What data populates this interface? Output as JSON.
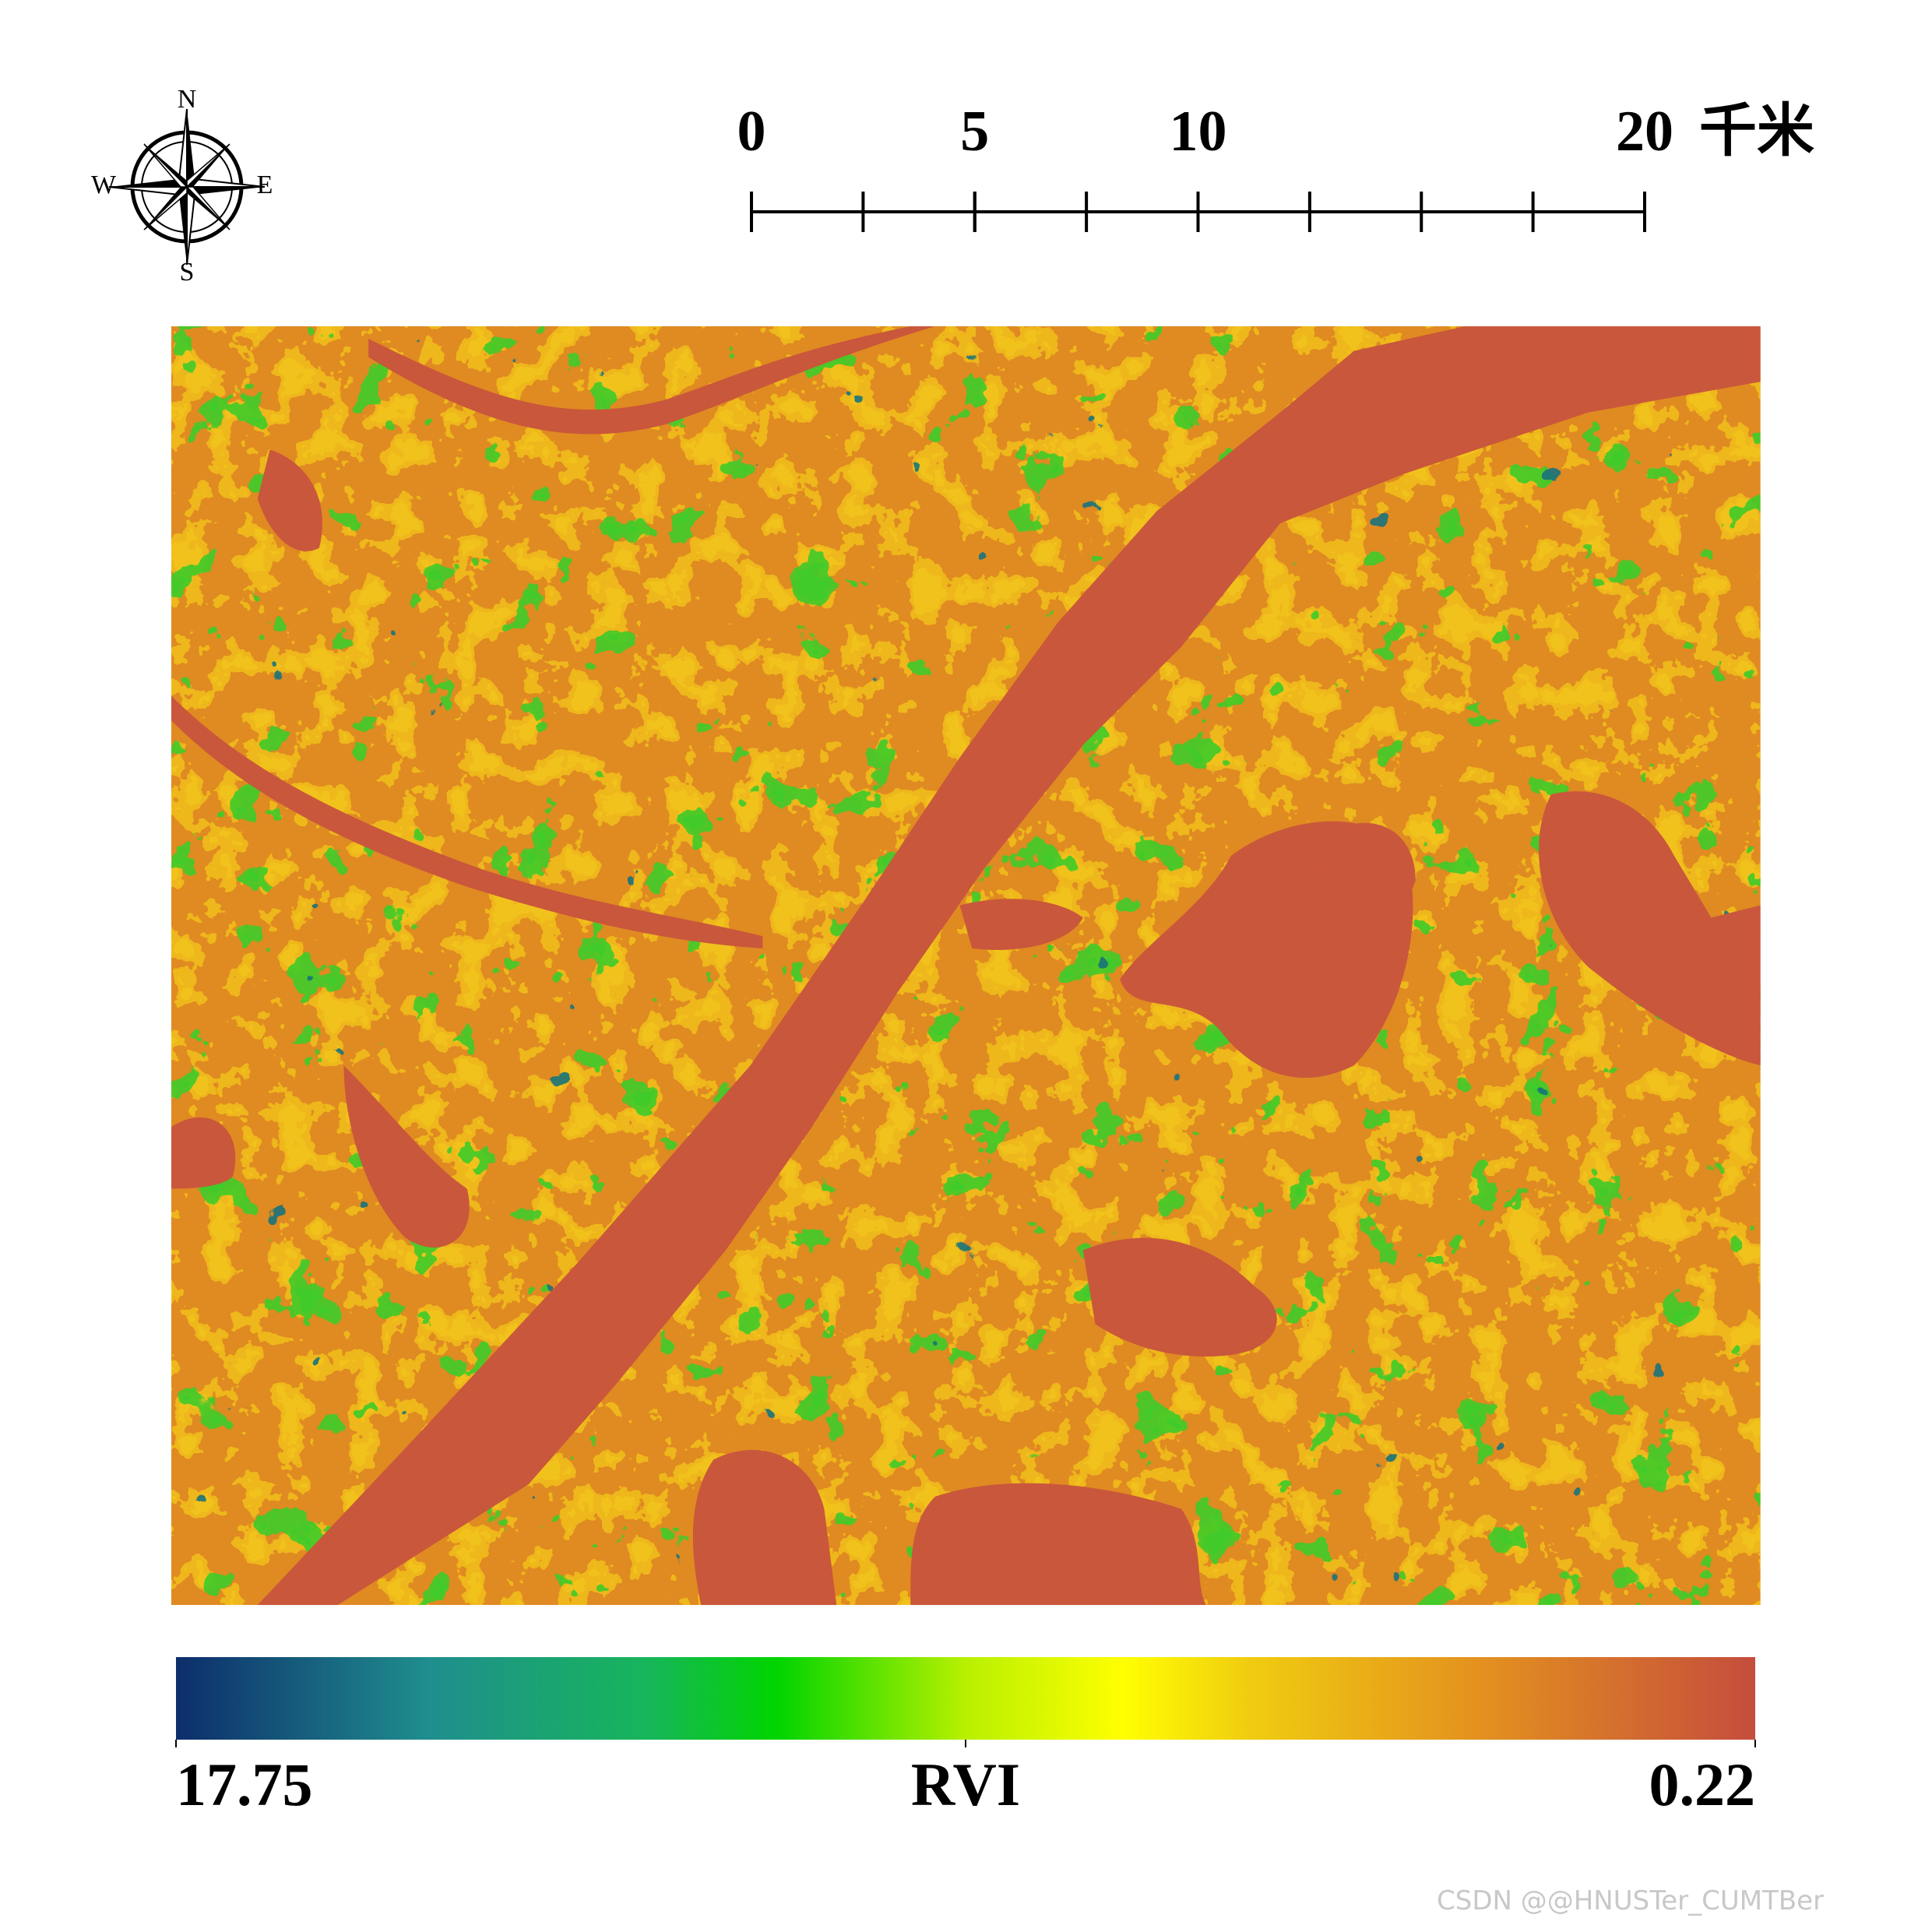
{
  "compass": {
    "north": "N",
    "south": "S",
    "west": "W",
    "east": "E"
  },
  "scale_bar": {
    "ticks": [
      0,
      5,
      10,
      20
    ],
    "unit": "千米"
  },
  "colorbar": {
    "left": 17.75,
    "title": "RVI",
    "right": 0.22
  },
  "watermark": "CSDN @@HNUSTer_CUMTBer"
}
